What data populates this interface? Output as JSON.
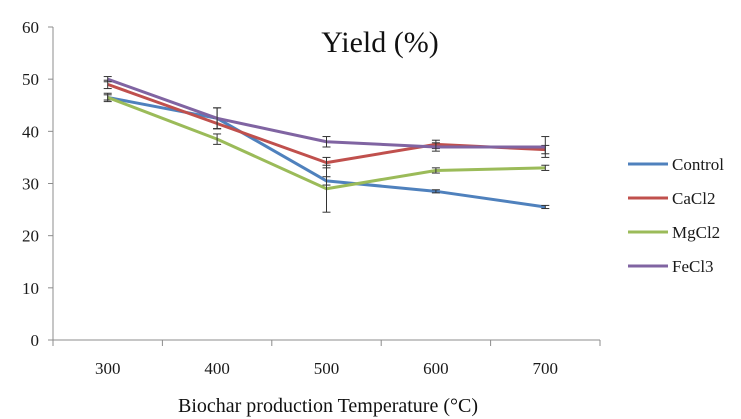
{
  "chart_data": {
    "type": "line",
    "title": "Yield (%)",
    "xlabel": "Biochar production  Temperature (°C)",
    "ylabel": "",
    "x": [
      300,
      400,
      500,
      600,
      700
    ],
    "ylim": [
      0,
      60
    ],
    "yticks": [
      0,
      10,
      20,
      30,
      40,
      50,
      60
    ],
    "grid": false,
    "legend_position": "right",
    "series": [
      {
        "name": "Control",
        "color": "#4f81bd",
        "values": [
          46.5,
          42.5,
          30.5,
          28.5,
          25.5
        ],
        "errors": [
          0.5,
          2.0,
          0.8,
          0.3,
          0.3
        ]
      },
      {
        "name": "CaCl2",
        "color": "#c0504d",
        "values": [
          49.0,
          41.5,
          34.0,
          37.5,
          36.5
        ],
        "errors": [
          0.8,
          1.0,
          1.0,
          0.8,
          0.8
        ]
      },
      {
        "name": "MgCl2",
        "color": "#9bbb59",
        "values": [
          46.5,
          38.5,
          29.0,
          32.5,
          33.0
        ],
        "errors": [
          0.8,
          1.0,
          4.5,
          0.5,
          0.5
        ]
      },
      {
        "name": "FeCl3",
        "color": "#8064a2",
        "values": [
          50.0,
          42.5,
          38.0,
          37.0,
          37.0
        ],
        "errors": [
          0.5,
          2.0,
          1.0,
          0.8,
          2.0
        ]
      }
    ]
  }
}
